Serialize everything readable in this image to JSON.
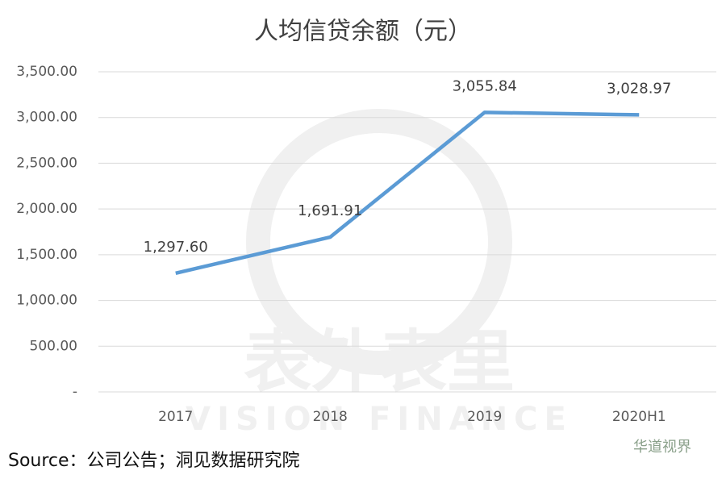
{
  "chart_data": {
    "type": "line",
    "title": "人均信贷余额（元）",
    "categories": [
      "2017",
      "2018",
      "2019",
      "2020H1"
    ],
    "series": [
      {
        "name": "人均信贷余额",
        "color": "#5b9bd5",
        "values": [
          1297.6,
          1691.91,
          3055.84,
          3028.97
        ],
        "value_labels": [
          "1,297.60",
          "1,691.91",
          "3,055.84",
          "3,028.97"
        ]
      }
    ],
    "ylim": [
      0,
      3500
    ],
    "yticks": [
      {
        "value": 0,
        "label": "-"
      },
      {
        "value": 500,
        "label": "500.00"
      },
      {
        "value": 1000,
        "label": "1,000.00"
      },
      {
        "value": 1500,
        "label": "1,500.00"
      },
      {
        "value": 2000,
        "label": "2,000.00"
      },
      {
        "value": 2500,
        "label": "2,500.00"
      },
      {
        "value": 3000,
        "label": "3,000.00"
      },
      {
        "value": 3500,
        "label": "3,500.00"
      }
    ],
    "grid": true,
    "source": "Source：公司公告；洞见数据研究院",
    "watermark": [
      "表外表里",
      "VISION FINANCE"
    ],
    "brand": "华道视界"
  }
}
